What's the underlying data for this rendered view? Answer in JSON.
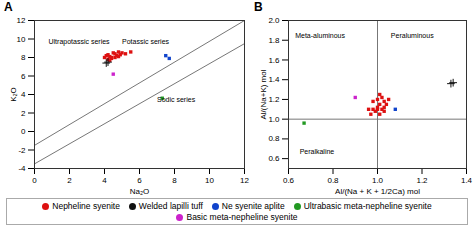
{
  "chart_data": [
    {
      "type": "scatter",
      "title": "A",
      "xlabel": "Na₂O",
      "ylabel": "K₂O",
      "xlim": [
        0,
        12
      ],
      "ylim": [
        -4,
        12
      ],
      "xticks": [
        0,
        2,
        4,
        6,
        8,
        10,
        12
      ],
      "yticks": [
        -4,
        -2,
        0,
        2,
        4,
        6,
        8,
        10,
        12
      ],
      "legend": "bottom",
      "lines": [
        {
          "x": [
            0,
            12
          ],
          "y": [
            -1.5,
            12.0
          ],
          "color": "#777777"
        },
        {
          "x": [
            0,
            12
          ],
          "y": [
            -3.5,
            9.5
          ],
          "color": "#777777"
        }
      ],
      "annotations": [
        {
          "text": "Ultrapotassic series",
          "x": 0.8,
          "y": 9.5
        },
        {
          "text": "Potassic series",
          "x": 5.0,
          "y": 9.5
        },
        {
          "text": "Sodic series",
          "x": 7.0,
          "y": 3.2
        }
      ],
      "series": [
        {
          "name": "Nepheline syenite",
          "color": "#dd1111",
          "marker": "square",
          "values": [
            [
              4.0,
              8.0
            ],
            [
              4.1,
              8.2
            ],
            [
              4.2,
              8.3
            ],
            [
              4.3,
              8.1
            ],
            [
              4.4,
              8.0
            ],
            [
              4.5,
              8.5
            ],
            [
              4.6,
              8.4
            ],
            [
              4.7,
              8.2
            ],
            [
              4.8,
              8.6
            ],
            [
              5.0,
              8.5
            ],
            [
              4.2,
              7.8
            ],
            [
              4.4,
              7.9
            ],
            [
              4.6,
              8.0
            ],
            [
              4.8,
              8.1
            ],
            [
              5.2,
              8.4
            ],
            [
              4.3,
              7.7
            ],
            [
              4.9,
              8.3
            ],
            [
              5.5,
              8.6
            ]
          ]
        },
        {
          "name": "Welded lapilli tuff",
          "color": "#111111",
          "marker": "plus",
          "values": [
            [
              4.1,
              7.4
            ],
            [
              4.2,
              7.5
            ]
          ]
        },
        {
          "name": "Ne syenite aplite",
          "color": "#1144cc",
          "marker": "square",
          "values": [
            [
              7.5,
              8.2
            ],
            [
              7.7,
              7.9
            ]
          ]
        },
        {
          "name": "Ultrabasic meta-nepheline syenite",
          "color": "#229922",
          "marker": "square",
          "values": [
            [
              7.3,
              3.6
            ]
          ]
        },
        {
          "name": "Basic meta-nepheline syenite",
          "color": "#cc22cc",
          "marker": "square",
          "values": [
            [
              4.5,
              6.2
            ]
          ]
        }
      ]
    },
    {
      "type": "scatter",
      "title": "B",
      "xlabel": "Al/(Na + K + 1/2Ca) mol",
      "ylabel": "Al/(Na+K) mol",
      "xlim": [
        0.6,
        1.4
      ],
      "ylim": [
        0.5,
        2.0
      ],
      "xticks": [
        0.6,
        0.8,
        {
          "value": 1.0,
          "label": "1.0"
        },
        1.2,
        1.4
      ],
      "yticks": [
        0.6,
        0.8,
        {
          "value": 1.0,
          "label": "1.0"
        },
        1.2,
        1.4,
        1.6,
        1.8,
        {
          "value": 2.0,
          "label": "2.0"
        }
      ],
      "legend": "bottom",
      "vlines": [
        {
          "x": 1.0,
          "color": "#777777"
        }
      ],
      "hlines": [
        {
          "y": 1.0,
          "color": "#777777"
        }
      ],
      "annotations": [
        {
          "text": "Meta-aluminous",
          "x": 0.63,
          "y": 1.82
        },
        {
          "text": "Peraluminous",
          "x": 1.06,
          "y": 1.82
        },
        {
          "text": "Peralkaline",
          "x": 0.65,
          "y": 0.65
        }
      ],
      "series": [
        {
          "name": "Nepheline syenite",
          "color": "#dd1111",
          "marker": "square",
          "values": [
            [
              0.98,
              1.1
            ],
            [
              1.0,
              1.12
            ],
            [
              1.01,
              1.15
            ],
            [
              1.02,
              1.1
            ],
            [
              0.99,
              1.08
            ],
            [
              1.03,
              1.18
            ],
            [
              1.0,
              1.1
            ],
            [
              1.04,
              1.15
            ],
            [
              0.97,
              1.05
            ],
            [
              1.02,
              1.22
            ],
            [
              1.03,
              1.12
            ],
            [
              0.96,
              1.1
            ],
            [
              1.01,
              1.05
            ],
            [
              1.0,
              1.2
            ],
            [
              1.03,
              1.08
            ],
            [
              0.98,
              1.18
            ],
            [
              1.05,
              1.2
            ],
            [
              1.01,
              1.25
            ]
          ]
        },
        {
          "name": "Welded lapilli tuff",
          "color": "#111111",
          "marker": "plus",
          "values": [
            [
              1.33,
              1.36
            ],
            [
              1.34,
              1.37
            ]
          ]
        },
        {
          "name": "Ne syenite aplite",
          "color": "#1144cc",
          "marker": "square",
          "values": [
            [
              1.08,
              1.1
            ]
          ]
        },
        {
          "name": "Ultrabasic meta-nepheline syenite",
          "color": "#229922",
          "marker": "square",
          "values": [
            [
              0.67,
              0.96
            ]
          ]
        },
        {
          "name": "Basic meta-nepheline syenite",
          "color": "#cc22cc",
          "marker": "square",
          "values": [
            [
              0.9,
              1.22
            ]
          ]
        }
      ]
    }
  ]
}
